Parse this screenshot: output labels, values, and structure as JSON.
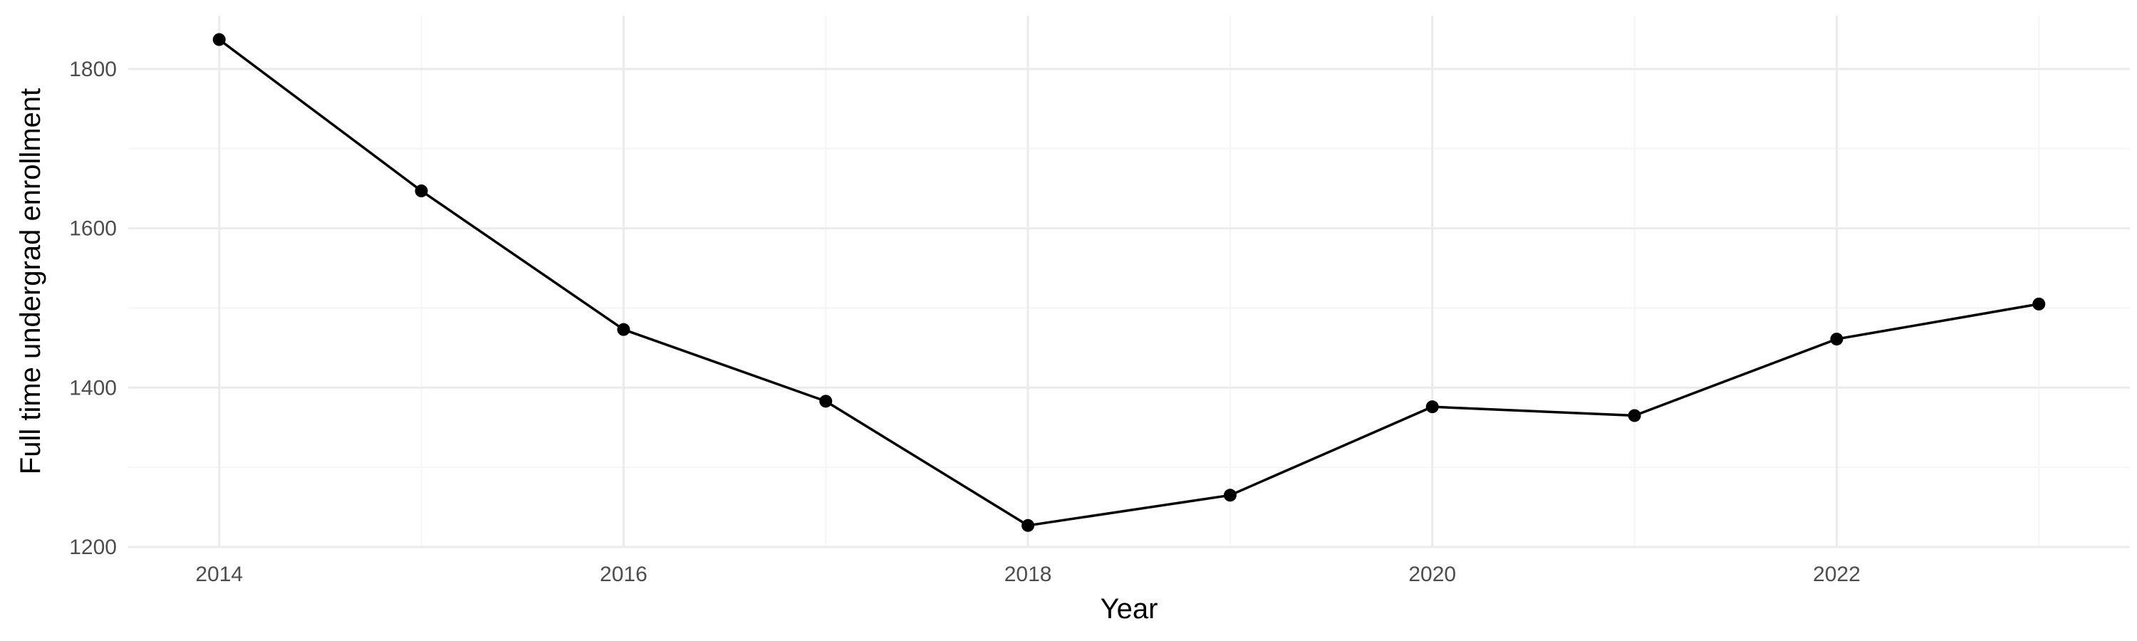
{
  "chart_data": {
    "type": "line",
    "title": "",
    "xlabel": "Year",
    "ylabel": "Full time undergrad enrollment",
    "x": [
      2014,
      2015,
      2016,
      2017,
      2018,
      2019,
      2020,
      2021,
      2022,
      2023
    ],
    "series": [
      {
        "values": [
          1837,
          1647,
          1473,
          1383,
          1227,
          1265,
          1376,
          1365,
          1461,
          1505
        ]
      }
    ],
    "xlim": [
      2013.55,
      2023.45
    ],
    "ylim": [
      1200,
      1867
    ],
    "x_ticks": [
      2014,
      2016,
      2018,
      2020,
      2022
    ],
    "x_minor_ticks": [
      2015,
      2017,
      2019,
      2021,
      2023
    ],
    "y_ticks": [
      1200,
      1400,
      1600,
      1800
    ],
    "y_minor_ticks": [
      1300,
      1500,
      1700
    ],
    "grid": true,
    "legend": "none",
    "colors": {
      "line": "#000000",
      "point": "#000000",
      "grid_major": "#ebebeb",
      "grid_minor": "#f5f5f5",
      "tick_text": "#4d4d4d"
    }
  }
}
